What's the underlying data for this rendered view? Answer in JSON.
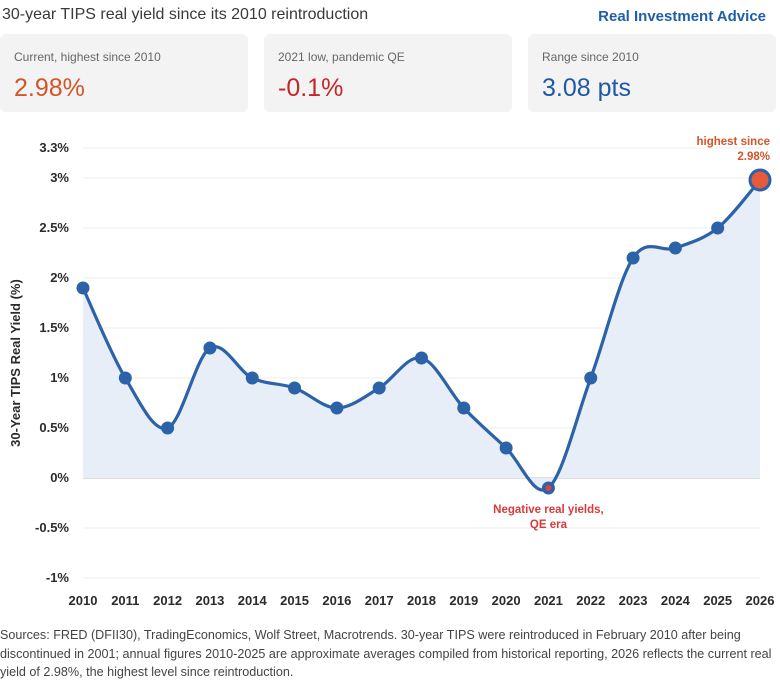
{
  "header": {
    "title": "30-year TIPS real yield since its 2010 reintroduction",
    "brand": "Real Investment Advice"
  },
  "cards": [
    {
      "label": "Current, highest since 2010",
      "value": "2.98%",
      "color": "#d2552b"
    },
    {
      "label": "2021 low, pandemic QE",
      "value": "-0.1%",
      "color": "#c4262b"
    },
    {
      "label": "Range since 2010",
      "value": "3.08 pts",
      "color": "#1e58a6"
    }
  ],
  "chart_data": {
    "type": "line",
    "ylabel": "30-Year TIPS Real Yield (%)",
    "x": [
      "2010",
      "2011",
      "2012",
      "2013",
      "2014",
      "2015",
      "2016",
      "2017",
      "2018",
      "2019",
      "2020",
      "2021",
      "2022",
      "2023",
      "2024",
      "2025",
      "2026"
    ],
    "series": [
      {
        "values": [
          1.9,
          1.0,
          0.5,
          1.3,
          1.0,
          0.9,
          0.7,
          0.9,
          1.2,
          0.7,
          0.3,
          -0.1,
          1.0,
          2.2,
          2.3,
          2.5,
          2.98
        ],
        "color": "#2c62a8"
      }
    ],
    "yticks": [
      "-1%",
      "-0.5%",
      "0%",
      "0.5%",
      "1%",
      "1.5%",
      "2%",
      "2.5%",
      "3%",
      "3.3%"
    ],
    "ylim": [
      -1,
      3.3
    ],
    "grid": "horizontal",
    "fill": "#e7eef8",
    "annotations": [
      {
        "x": "2021",
        "y": -0.1,
        "lines": [
          "Negative real yields,",
          "QE era"
        ],
        "color": "#d63a3a"
      },
      {
        "x": "2026",
        "y": 2.98,
        "lines": [
          "highest since",
          "2.98%"
        ],
        "color": "#d2552b"
      }
    ]
  },
  "source": "Sources: FRED (DFII30), TradingEconomics, Wolf Street, Macrotrends. 30-year TIPS were reintroduced in February 2010 after being discontinued in 2001; annual figures 2010-2025 are approximate averages compiled from historical reporting, 2026 reflects the current real yield of 2.98%, the highest level since reintroduction."
}
